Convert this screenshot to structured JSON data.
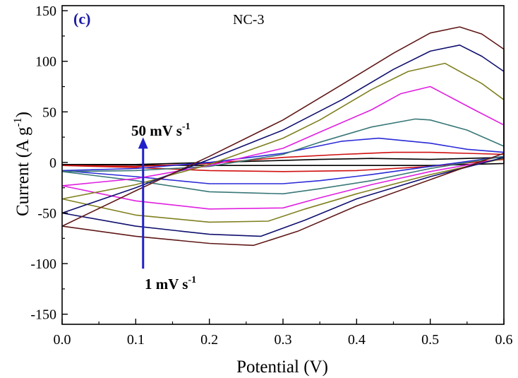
{
  "chart_data": {
    "type": "line",
    "panel_label": "(c)",
    "sample_label": "NC-3",
    "xlabel": "Potential (V)",
    "ylabel": "Current (A g",
    "ylabel_sup": "-1",
    "ylabel_close": ")",
    "xlim": [
      0.0,
      0.6
    ],
    "ylim": [
      -160,
      155
    ],
    "xticks": [
      0.0,
      0.1,
      0.2,
      0.3,
      0.4,
      0.5,
      0.6
    ],
    "xtick_labels": [
      "0.0",
      "0.1",
      "0.2",
      "0.3",
      "0.4",
      "0.5",
      "0.6"
    ],
    "yticks": [
      150,
      100,
      50,
      0,
      -50,
      -100,
      -150
    ],
    "ytick_labels": [
      "150",
      "100",
      "50",
      "0",
      "-50",
      "-100",
      "-150"
    ],
    "grid": false,
    "annotations": {
      "high_rate": {
        "text": "50 mV s",
        "sup": "-1"
      },
      "low_rate": {
        "text": "1 mV s",
        "sup": "-1"
      }
    },
    "arrow": {
      "x": 0.11,
      "from": -105,
      "to": 22,
      "color": "#2020c8"
    },
    "series": [
      {
        "color": "#000000",
        "cathodic": [
          [
            0.0,
            -2
          ],
          [
            0.2,
            -3
          ],
          [
            0.3,
            -3
          ],
          [
            0.5,
            -3
          ],
          [
            0.6,
            -1
          ]
        ],
        "anodic": [
          [
            0.6,
            5
          ],
          [
            0.5,
            3
          ],
          [
            0.42,
            4
          ],
          [
            0.35,
            3
          ],
          [
            0.3,
            2
          ],
          [
            0.2,
            0
          ],
          [
            0.1,
            -2
          ],
          [
            0.0,
            -2
          ]
        ]
      },
      {
        "color": "#d01010",
        "cathodic": [
          [
            0.0,
            -3
          ],
          [
            0.1,
            -5
          ],
          [
            0.2,
            -8
          ],
          [
            0.3,
            -9
          ],
          [
            0.4,
            -8
          ],
          [
            0.5,
            -4
          ],
          [
            0.6,
            3
          ]
        ],
        "anodic": [
          [
            0.6,
            8
          ],
          [
            0.55,
            9
          ],
          [
            0.5,
            10
          ],
          [
            0.45,
            10
          ],
          [
            0.38,
            8
          ],
          [
            0.3,
            5
          ],
          [
            0.2,
            -1
          ],
          [
            0.1,
            -4
          ],
          [
            0.0,
            -3
          ]
        ]
      },
      {
        "color": "#2a2ad8",
        "cathodic": [
          [
            0.0,
            -8
          ],
          [
            0.1,
            -14
          ],
          [
            0.2,
            -21
          ],
          [
            0.3,
            -21
          ],
          [
            0.35,
            -18
          ],
          [
            0.42,
            -12
          ],
          [
            0.5,
            -4
          ],
          [
            0.6,
            6
          ]
        ],
        "anodic": [
          [
            0.6,
            10
          ],
          [
            0.55,
            13
          ],
          [
            0.5,
            19
          ],
          [
            0.43,
            24
          ],
          [
            0.38,
            21
          ],
          [
            0.3,
            9
          ],
          [
            0.2,
            0
          ],
          [
            0.1,
            -6
          ],
          [
            0.0,
            -8
          ]
        ]
      },
      {
        "color": "#3a7878",
        "cathodic": [
          [
            0.0,
            -9
          ],
          [
            0.1,
            -18
          ],
          [
            0.2,
            -29
          ],
          [
            0.3,
            -31
          ],
          [
            0.35,
            -26
          ],
          [
            0.42,
            -18
          ],
          [
            0.5,
            -6
          ],
          [
            0.6,
            6
          ]
        ],
        "anodic": [
          [
            0.6,
            16
          ],
          [
            0.55,
            32
          ],
          [
            0.5,
            42
          ],
          [
            0.48,
            43
          ],
          [
            0.42,
            35
          ],
          [
            0.35,
            20
          ],
          [
            0.3,
            8
          ],
          [
            0.2,
            -4
          ],
          [
            0.1,
            -8
          ],
          [
            0.0,
            -9
          ]
        ]
      },
      {
        "color": "#e020e0",
        "cathodic": [
          [
            0.0,
            -23
          ],
          [
            0.1,
            -38
          ],
          [
            0.2,
            -46
          ],
          [
            0.3,
            -45
          ],
          [
            0.35,
            -35
          ],
          [
            0.42,
            -22
          ],
          [
            0.5,
            -9
          ],
          [
            0.6,
            4
          ]
        ],
        "anodic": [
          [
            0.6,
            37
          ],
          [
            0.56,
            52
          ],
          [
            0.5,
            75
          ],
          [
            0.46,
            68
          ],
          [
            0.42,
            52
          ],
          [
            0.35,
            30
          ],
          [
            0.3,
            14
          ],
          [
            0.2,
            -3
          ],
          [
            0.1,
            -16
          ],
          [
            0.0,
            -23
          ]
        ]
      },
      {
        "color": "#808020",
        "cathodic": [
          [
            0.0,
            -36
          ],
          [
            0.1,
            -52
          ],
          [
            0.2,
            -59
          ],
          [
            0.28,
            -58
          ],
          [
            0.33,
            -46
          ],
          [
            0.4,
            -31
          ],
          [
            0.5,
            -12
          ],
          [
            0.6,
            4
          ]
        ],
        "anodic": [
          [
            0.6,
            62
          ],
          [
            0.57,
            78
          ],
          [
            0.52,
            98
          ],
          [
            0.47,
            90
          ],
          [
            0.42,
            72
          ],
          [
            0.35,
            42
          ],
          [
            0.3,
            24
          ],
          [
            0.2,
            -2
          ],
          [
            0.1,
            -22
          ],
          [
            0.0,
            -36
          ]
        ]
      },
      {
        "color": "#101070",
        "cathodic": [
          [
            0.0,
            -50
          ],
          [
            0.1,
            -63
          ],
          [
            0.2,
            -71
          ],
          [
            0.27,
            -73
          ],
          [
            0.33,
            -57
          ],
          [
            0.4,
            -36
          ],
          [
            0.5,
            -14
          ],
          [
            0.6,
            5
          ]
        ],
        "anodic": [
          [
            0.6,
            90
          ],
          [
            0.57,
            105
          ],
          [
            0.54,
            116
          ],
          [
            0.5,
            110
          ],
          [
            0.45,
            92
          ],
          [
            0.38,
            62
          ],
          [
            0.3,
            32
          ],
          [
            0.2,
            3
          ],
          [
            0.1,
            -25
          ],
          [
            0.0,
            -50
          ]
        ]
      },
      {
        "color": "#601818",
        "cathodic": [
          [
            0.0,
            -63
          ],
          [
            0.1,
            -73
          ],
          [
            0.2,
            -80
          ],
          [
            0.26,
            -82
          ],
          [
            0.32,
            -68
          ],
          [
            0.4,
            -43
          ],
          [
            0.5,
            -17
          ],
          [
            0.6,
            9
          ]
        ],
        "anodic": [
          [
            0.6,
            112
          ],
          [
            0.57,
            127
          ],
          [
            0.54,
            134
          ],
          [
            0.5,
            128
          ],
          [
            0.45,
            108
          ],
          [
            0.38,
            77
          ],
          [
            0.3,
            42
          ],
          [
            0.2,
            6
          ],
          [
            0.1,
            -28
          ],
          [
            0.0,
            -63
          ]
        ]
      }
    ]
  }
}
